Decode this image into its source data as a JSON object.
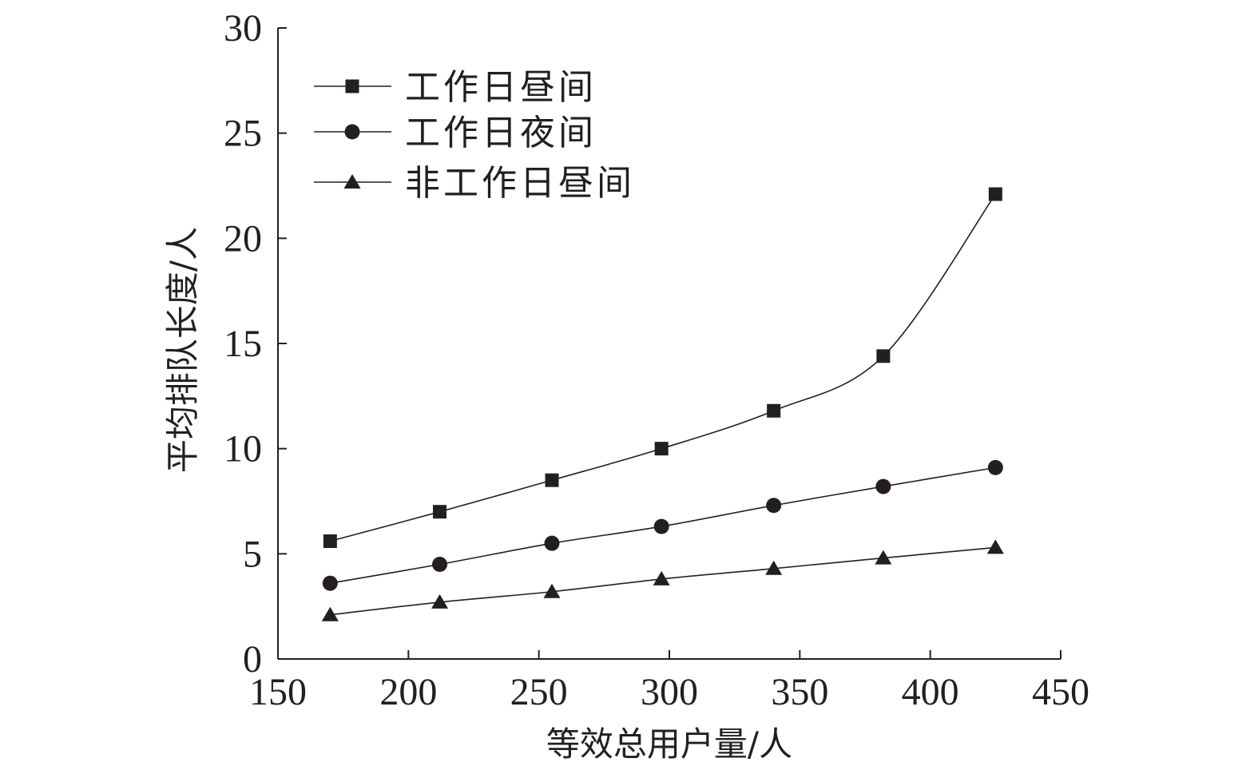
{
  "chart_data": {
    "type": "line",
    "xlabel": "等效总用户量/人",
    "ylabel": "平均排队长度/人",
    "xlim": [
      150,
      450
    ],
    "ylim": [
      0,
      30
    ],
    "xticks": [
      150,
      200,
      250,
      300,
      350,
      400,
      450
    ],
    "yticks": [
      0,
      5,
      10,
      15,
      20,
      25,
      30
    ],
    "grid": false,
    "legend_position": "top-left",
    "x": [
      170,
      212,
      255,
      297,
      340,
      382,
      425
    ],
    "series": [
      {
        "name": "工作日昼间",
        "marker": "square",
        "values": [
          5.6,
          7.0,
          8.5,
          10.0,
          11.8,
          14.4,
          22.1
        ]
      },
      {
        "name": "工作日夜间",
        "marker": "circle",
        "values": [
          3.6,
          4.5,
          5.5,
          6.3,
          7.3,
          8.2,
          9.1
        ]
      },
      {
        "name": "非工作日昼间",
        "marker": "triangle",
        "values": [
          2.1,
          2.7,
          3.2,
          3.8,
          4.3,
          4.8,
          5.3
        ]
      }
    ]
  }
}
